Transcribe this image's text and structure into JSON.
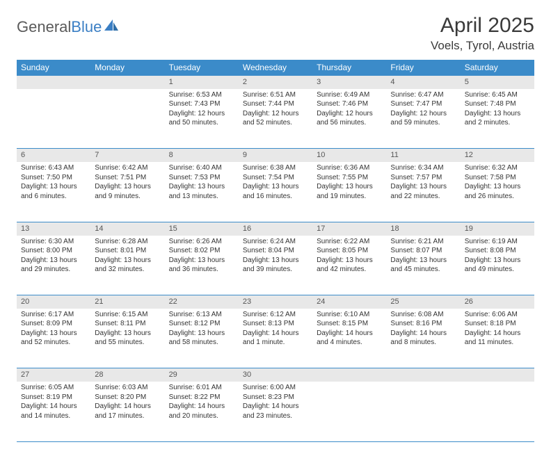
{
  "brand": {
    "part1": "General",
    "part2": "Blue"
  },
  "title": "April 2025",
  "location": "Voels, Tyrol, Austria",
  "colors": {
    "header_bg": "#3b8bc9",
    "header_text": "#ffffff",
    "daynum_bg": "#e8e8e8",
    "border": "#3b8bc9",
    "text": "#333333",
    "brand_gray": "#5a5a5a",
    "brand_blue": "#3b7fc4"
  },
  "weekdays": [
    "Sunday",
    "Monday",
    "Tuesday",
    "Wednesday",
    "Thursday",
    "Friday",
    "Saturday"
  ],
  "weeks": [
    [
      null,
      null,
      {
        "n": "1",
        "sr": "6:53 AM",
        "ss": "7:43 PM",
        "dl": "12 hours and 50 minutes."
      },
      {
        "n": "2",
        "sr": "6:51 AM",
        "ss": "7:44 PM",
        "dl": "12 hours and 52 minutes."
      },
      {
        "n": "3",
        "sr": "6:49 AM",
        "ss": "7:46 PM",
        "dl": "12 hours and 56 minutes."
      },
      {
        "n": "4",
        "sr": "6:47 AM",
        "ss": "7:47 PM",
        "dl": "12 hours and 59 minutes."
      },
      {
        "n": "5",
        "sr": "6:45 AM",
        "ss": "7:48 PM",
        "dl": "13 hours and 2 minutes."
      }
    ],
    [
      {
        "n": "6",
        "sr": "6:43 AM",
        "ss": "7:50 PM",
        "dl": "13 hours and 6 minutes."
      },
      {
        "n": "7",
        "sr": "6:42 AM",
        "ss": "7:51 PM",
        "dl": "13 hours and 9 minutes."
      },
      {
        "n": "8",
        "sr": "6:40 AM",
        "ss": "7:53 PM",
        "dl": "13 hours and 13 minutes."
      },
      {
        "n": "9",
        "sr": "6:38 AM",
        "ss": "7:54 PM",
        "dl": "13 hours and 16 minutes."
      },
      {
        "n": "10",
        "sr": "6:36 AM",
        "ss": "7:55 PM",
        "dl": "13 hours and 19 minutes."
      },
      {
        "n": "11",
        "sr": "6:34 AM",
        "ss": "7:57 PM",
        "dl": "13 hours and 22 minutes."
      },
      {
        "n": "12",
        "sr": "6:32 AM",
        "ss": "7:58 PM",
        "dl": "13 hours and 26 minutes."
      }
    ],
    [
      {
        "n": "13",
        "sr": "6:30 AM",
        "ss": "8:00 PM",
        "dl": "13 hours and 29 minutes."
      },
      {
        "n": "14",
        "sr": "6:28 AM",
        "ss": "8:01 PM",
        "dl": "13 hours and 32 minutes."
      },
      {
        "n": "15",
        "sr": "6:26 AM",
        "ss": "8:02 PM",
        "dl": "13 hours and 36 minutes."
      },
      {
        "n": "16",
        "sr": "6:24 AM",
        "ss": "8:04 PM",
        "dl": "13 hours and 39 minutes."
      },
      {
        "n": "17",
        "sr": "6:22 AM",
        "ss": "8:05 PM",
        "dl": "13 hours and 42 minutes."
      },
      {
        "n": "18",
        "sr": "6:21 AM",
        "ss": "8:07 PM",
        "dl": "13 hours and 45 minutes."
      },
      {
        "n": "19",
        "sr": "6:19 AM",
        "ss": "8:08 PM",
        "dl": "13 hours and 49 minutes."
      }
    ],
    [
      {
        "n": "20",
        "sr": "6:17 AM",
        "ss": "8:09 PM",
        "dl": "13 hours and 52 minutes."
      },
      {
        "n": "21",
        "sr": "6:15 AM",
        "ss": "8:11 PM",
        "dl": "13 hours and 55 minutes."
      },
      {
        "n": "22",
        "sr": "6:13 AM",
        "ss": "8:12 PM",
        "dl": "13 hours and 58 minutes."
      },
      {
        "n": "23",
        "sr": "6:12 AM",
        "ss": "8:13 PM",
        "dl": "14 hours and 1 minute."
      },
      {
        "n": "24",
        "sr": "6:10 AM",
        "ss": "8:15 PM",
        "dl": "14 hours and 4 minutes."
      },
      {
        "n": "25",
        "sr": "6:08 AM",
        "ss": "8:16 PM",
        "dl": "14 hours and 8 minutes."
      },
      {
        "n": "26",
        "sr": "6:06 AM",
        "ss": "8:18 PM",
        "dl": "14 hours and 11 minutes."
      }
    ],
    [
      {
        "n": "27",
        "sr": "6:05 AM",
        "ss": "8:19 PM",
        "dl": "14 hours and 14 minutes."
      },
      {
        "n": "28",
        "sr": "6:03 AM",
        "ss": "8:20 PM",
        "dl": "14 hours and 17 minutes."
      },
      {
        "n": "29",
        "sr": "6:01 AM",
        "ss": "8:22 PM",
        "dl": "14 hours and 20 minutes."
      },
      {
        "n": "30",
        "sr": "6:00 AM",
        "ss": "8:23 PM",
        "dl": "14 hours and 23 minutes."
      },
      null,
      null,
      null
    ]
  ]
}
